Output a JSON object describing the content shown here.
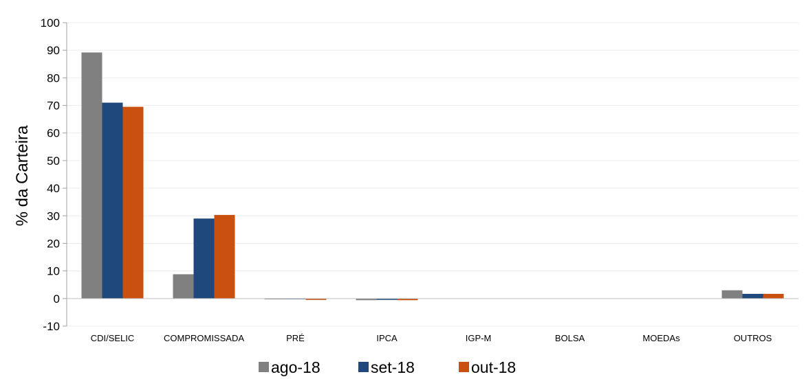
{
  "chart_data": {
    "type": "bar",
    "title": "",
    "xlabel": "",
    "ylabel": "% da Carteira",
    "ylim": [
      -10,
      100
    ],
    "yticks": [
      "-10",
      "0",
      "10",
      "20",
      "30",
      "40",
      "50",
      "60",
      "70",
      "80",
      "90",
      "100"
    ],
    "grid": true,
    "legend_position": "bottom",
    "categories": [
      "CDI/SELIC",
      "COMPROMISSADA",
      "PRÉ",
      "IPCA",
      "IGP-M",
      "BOLSA",
      "MOEDAs",
      "OUTROS"
    ],
    "series": [
      {
        "name": "ago-18",
        "color": "#808080",
        "values": [
          89.2,
          8.8,
          -0.3,
          -0.6,
          0.0,
          0.0,
          0.0,
          3.0
        ]
      },
      {
        "name": "set-18",
        "color": "#1F497D",
        "values": [
          71.0,
          29.0,
          -0.2,
          -0.5,
          0.0,
          0.0,
          0.0,
          1.7
        ]
      },
      {
        "name": "out-18",
        "color": "#C9500F",
        "values": [
          69.5,
          30.3,
          -0.5,
          -0.6,
          0.0,
          0.0,
          0.0,
          1.7
        ]
      }
    ]
  }
}
